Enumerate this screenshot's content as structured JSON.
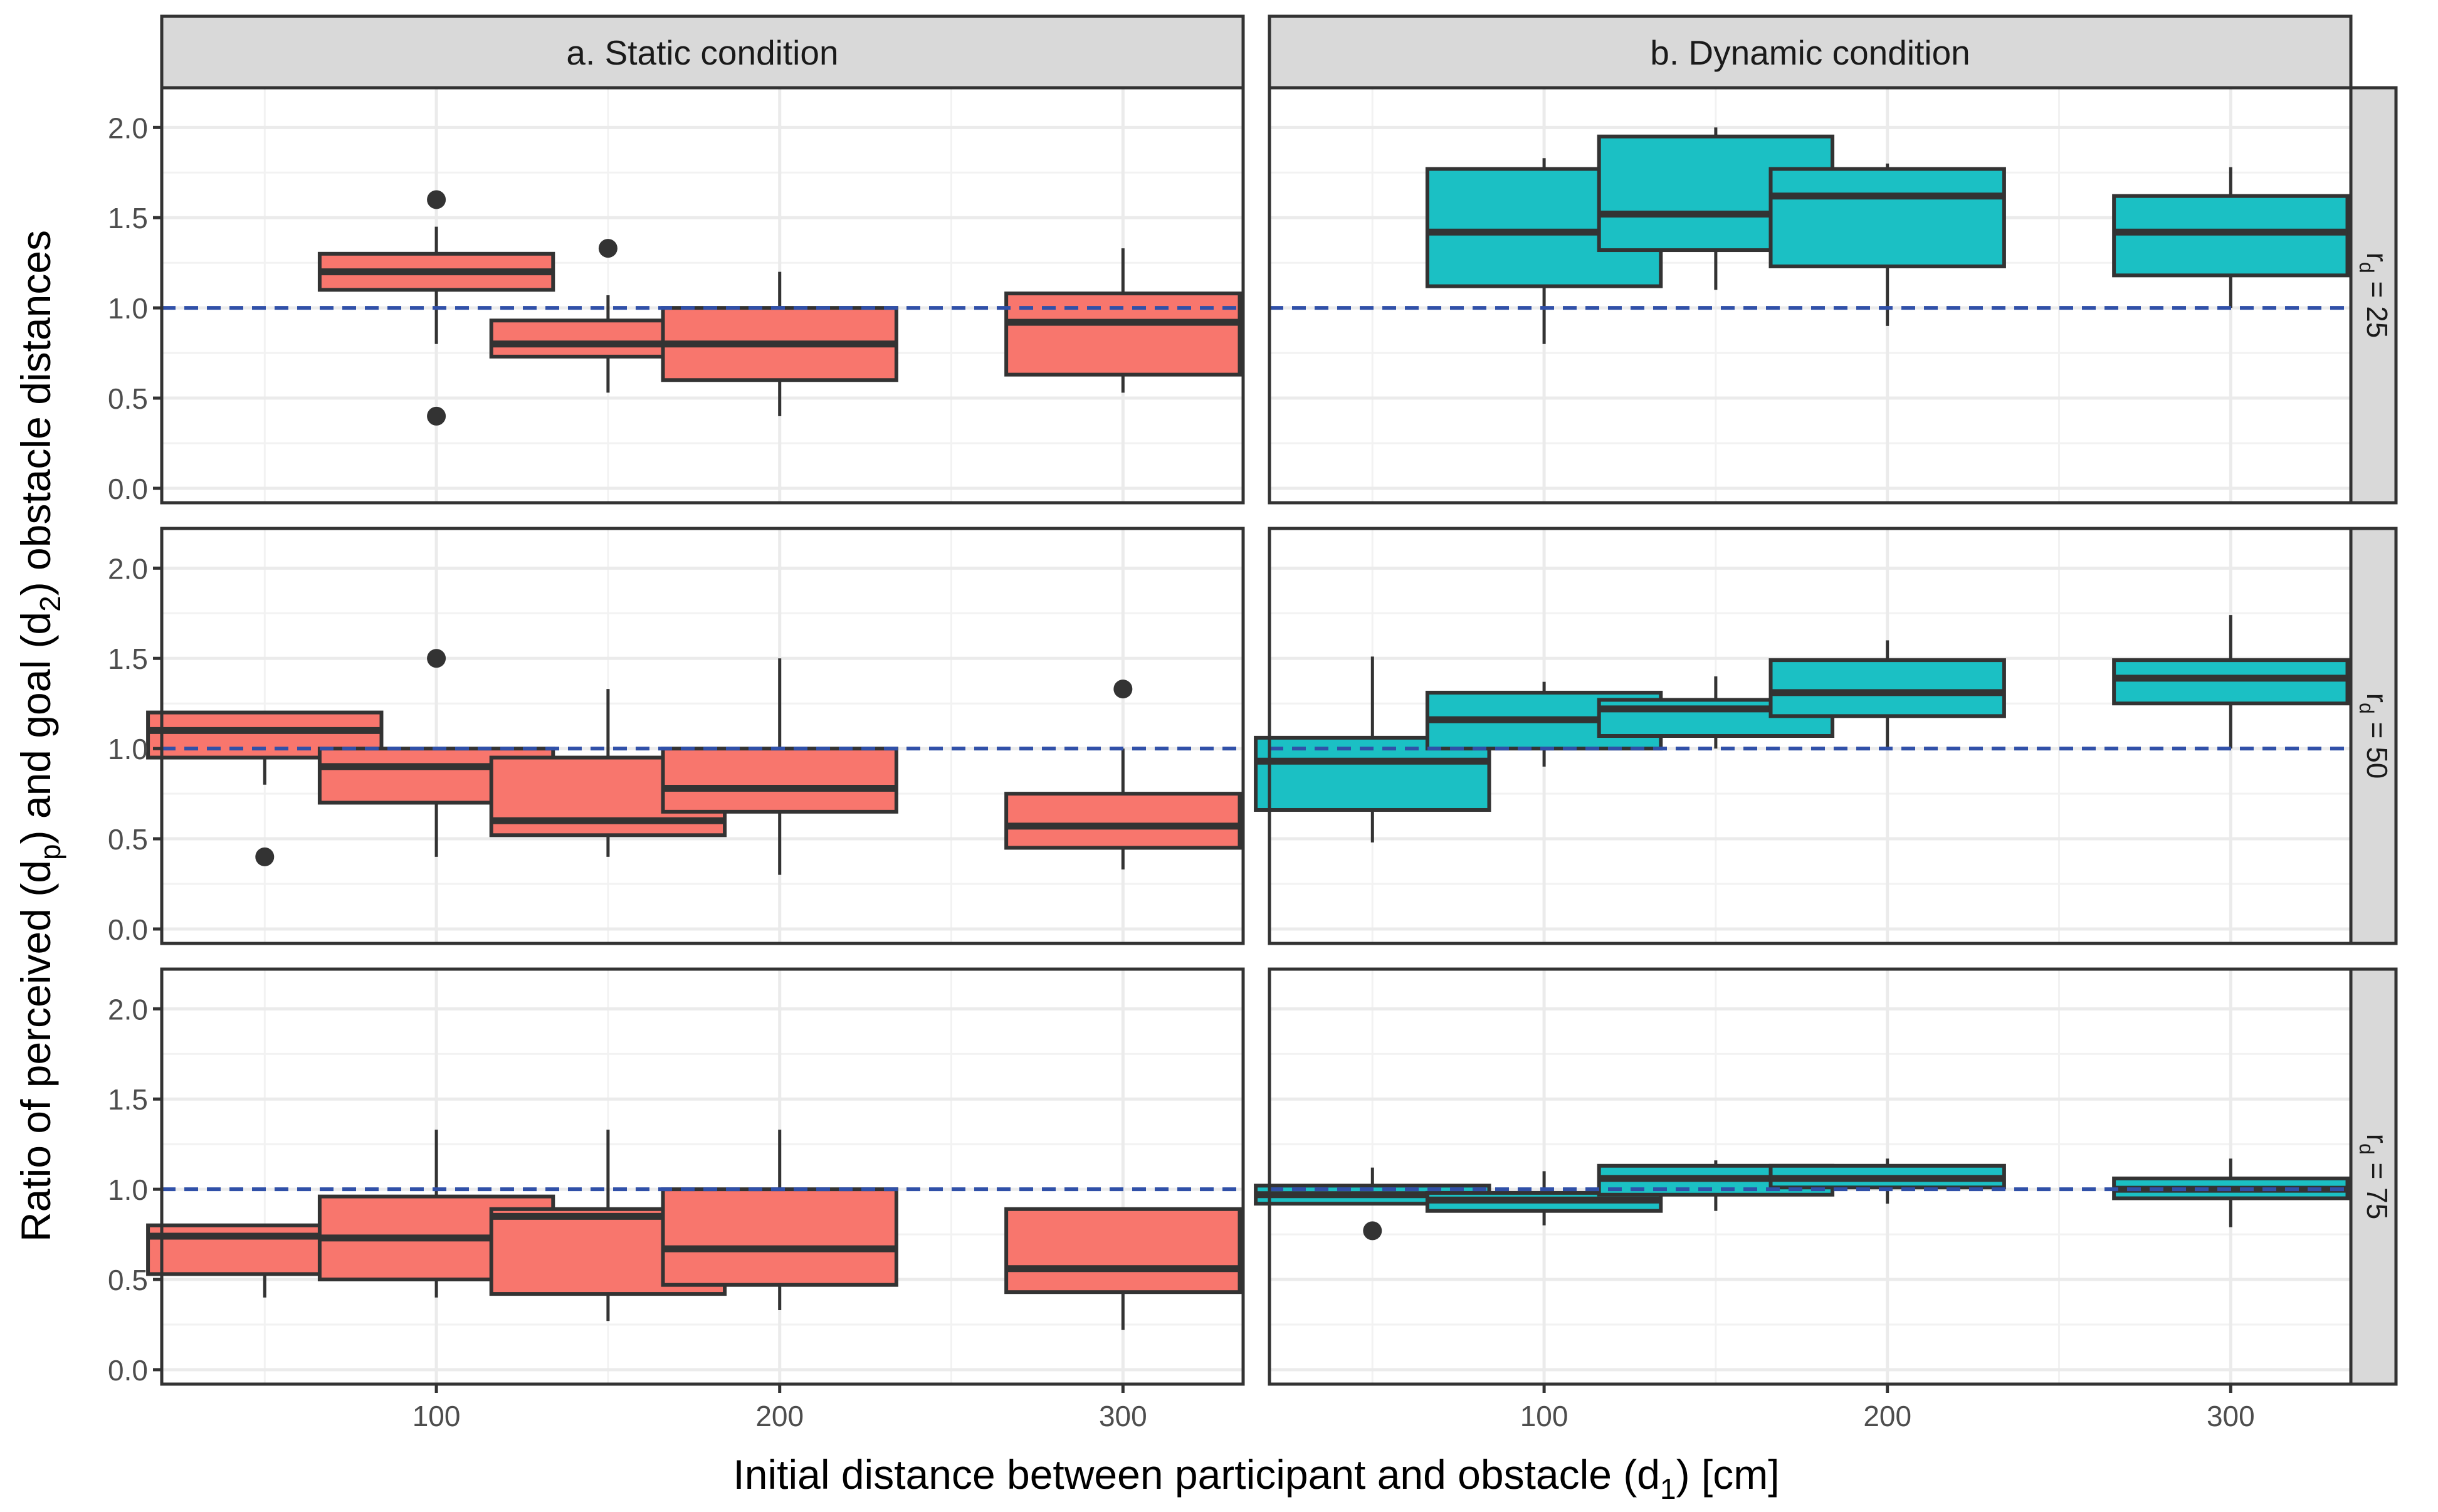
{
  "chart_data": {
    "type": "boxplot",
    "facet_columns": [
      "a. Static condition",
      "b. Dynamic condition"
    ],
    "facet_rows": [
      {
        "base": "r",
        "sub": "d",
        "rest": " = 25"
      },
      {
        "base": "r",
        "sub": "d",
        "rest": " = 50"
      },
      {
        "base": "r",
        "sub": "d",
        "rest": " = 75"
      }
    ],
    "xlabel": {
      "pre": "Initial distance between participant and obstacle (d",
      "sub": "1",
      "post": ") [cm]"
    },
    "ylabel": {
      "parts": [
        {
          "t": "Ratio of perceived (d",
          "sub": false
        },
        {
          "t": "p",
          "sub": true
        },
        {
          "t": ") and goal (d",
          "sub": false
        },
        {
          "t": "2",
          "sub": true
        },
        {
          "t": ") obstacle distances",
          "sub": false
        }
      ]
    },
    "x_ticks": [
      100,
      200,
      300
    ],
    "y_ticks": [
      0.0,
      0.5,
      1.0,
      1.5,
      2.0
    ],
    "y_tick_labels": [
      "0.0",
      "0.5",
      "1.0",
      "1.5",
      "2.0"
    ],
    "xlim": [
      20,
      335
    ],
    "ylim": [
      -0.08,
      2.22
    ],
    "reference_line": 1.0,
    "grid": true,
    "colors": {
      "static": "#F8766D",
      "dynamic": "#1BC0C4",
      "reference": "#3050A8",
      "box_line": "#333333",
      "strip": "#d9d9d9"
    },
    "panels": [
      {
        "row": 0,
        "col": 0,
        "boxes": [
          {
            "x": 100,
            "low": 0.8,
            "q1": 1.1,
            "median": 1.2,
            "q3": 1.3,
            "high": 1.45,
            "outliers": [
              1.6,
              0.4
            ]
          },
          {
            "x": 150,
            "low": 0.53,
            "q1": 0.73,
            "median": 0.8,
            "q3": 0.93,
            "high": 1.07,
            "outliers": [
              1.33
            ]
          },
          {
            "x": 200,
            "low": 0.4,
            "q1": 0.6,
            "median": 0.8,
            "q3": 1.0,
            "high": 1.2,
            "outliers": []
          },
          {
            "x": 300,
            "low": 0.53,
            "q1": 0.63,
            "median": 0.92,
            "q3": 1.08,
            "high": 1.33,
            "outliers": []
          }
        ]
      },
      {
        "row": 0,
        "col": 1,
        "boxes": [
          {
            "x": 100,
            "low": 0.8,
            "q1": 1.12,
            "median": 1.42,
            "q3": 1.77,
            "high": 1.83,
            "outliers": []
          },
          {
            "x": 150,
            "low": 1.1,
            "q1": 1.32,
            "median": 1.52,
            "q3": 1.95,
            "high": 2.0,
            "outliers": []
          },
          {
            "x": 200,
            "low": 0.9,
            "q1": 1.23,
            "median": 1.62,
            "q3": 1.77,
            "high": 1.8,
            "outliers": []
          },
          {
            "x": 300,
            "low": 1.0,
            "q1": 1.18,
            "median": 1.42,
            "q3": 1.62,
            "high": 1.78,
            "outliers": []
          }
        ]
      },
      {
        "row": 1,
        "col": 0,
        "boxes": [
          {
            "x": 50,
            "low": 0.8,
            "q1": 0.95,
            "median": 1.1,
            "q3": 1.2,
            "high": 1.2,
            "outliers": [
              0.4
            ]
          },
          {
            "x": 100,
            "low": 0.4,
            "q1": 0.7,
            "median": 0.9,
            "q3": 1.0,
            "high": 1.0,
            "outliers": [
              1.5
            ]
          },
          {
            "x": 150,
            "low": 0.4,
            "q1": 0.52,
            "median": 0.6,
            "q3": 0.95,
            "high": 1.33,
            "outliers": []
          },
          {
            "x": 200,
            "low": 0.3,
            "q1": 0.65,
            "median": 0.78,
            "q3": 1.0,
            "high": 1.5,
            "outliers": []
          },
          {
            "x": 300,
            "low": 0.33,
            "q1": 0.45,
            "median": 0.57,
            "q3": 0.75,
            "high": 1.0,
            "outliers": [
              1.33
            ]
          }
        ]
      },
      {
        "row": 1,
        "col": 1,
        "boxes": [
          {
            "x": 50,
            "low": 0.48,
            "q1": 0.66,
            "median": 0.93,
            "q3": 1.06,
            "high": 1.51,
            "outliers": []
          },
          {
            "x": 100,
            "low": 0.9,
            "q1": 1.0,
            "median": 1.16,
            "q3": 1.31,
            "high": 1.37,
            "outliers": []
          },
          {
            "x": 150,
            "low": 1.0,
            "q1": 1.07,
            "median": 1.22,
            "q3": 1.27,
            "high": 1.4,
            "outliers": []
          },
          {
            "x": 200,
            "low": 1.0,
            "q1": 1.18,
            "median": 1.31,
            "q3": 1.49,
            "high": 1.6,
            "outliers": []
          },
          {
            "x": 300,
            "low": 1.0,
            "q1": 1.25,
            "median": 1.39,
            "q3": 1.49,
            "high": 1.74,
            "outliers": []
          }
        ]
      },
      {
        "row": 2,
        "col": 0,
        "boxes": [
          {
            "x": 50,
            "low": 0.4,
            "q1": 0.53,
            "median": 0.74,
            "q3": 0.8,
            "high": 0.8,
            "outliers": []
          },
          {
            "x": 100,
            "low": 0.4,
            "q1": 0.5,
            "median": 0.73,
            "q3": 0.96,
            "high": 1.33,
            "outliers": []
          },
          {
            "x": 150,
            "low": 0.27,
            "q1": 0.42,
            "median": 0.85,
            "q3": 0.89,
            "high": 1.33,
            "outliers": []
          },
          {
            "x": 200,
            "low": 0.33,
            "q1": 0.47,
            "median": 0.67,
            "q3": 1.0,
            "high": 1.33,
            "outliers": []
          },
          {
            "x": 300,
            "low": 0.22,
            "q1": 0.43,
            "median": 0.56,
            "q3": 0.89,
            "high": 0.89,
            "outliers": []
          }
        ]
      },
      {
        "row": 2,
        "col": 1,
        "boxes": [
          {
            "x": 50,
            "low": 0.92,
            "q1": 0.92,
            "median": 0.97,
            "q3": 1.02,
            "high": 1.12,
            "outliers": [
              0.77
            ]
          },
          {
            "x": 100,
            "low": 0.8,
            "q1": 0.88,
            "median": 0.94,
            "q3": 0.98,
            "high": 1.1,
            "outliers": []
          },
          {
            "x": 150,
            "low": 0.88,
            "q1": 0.97,
            "median": 1.06,
            "q3": 1.13,
            "high": 1.16,
            "outliers": []
          },
          {
            "x": 200,
            "low": 0.92,
            "q1": 1.01,
            "median": 1.06,
            "q3": 1.13,
            "high": 1.17,
            "outliers": []
          },
          {
            "x": 300,
            "low": 0.79,
            "q1": 0.95,
            "median": 1.0,
            "q3": 1.06,
            "high": 1.17,
            "outliers": []
          }
        ]
      }
    ]
  }
}
